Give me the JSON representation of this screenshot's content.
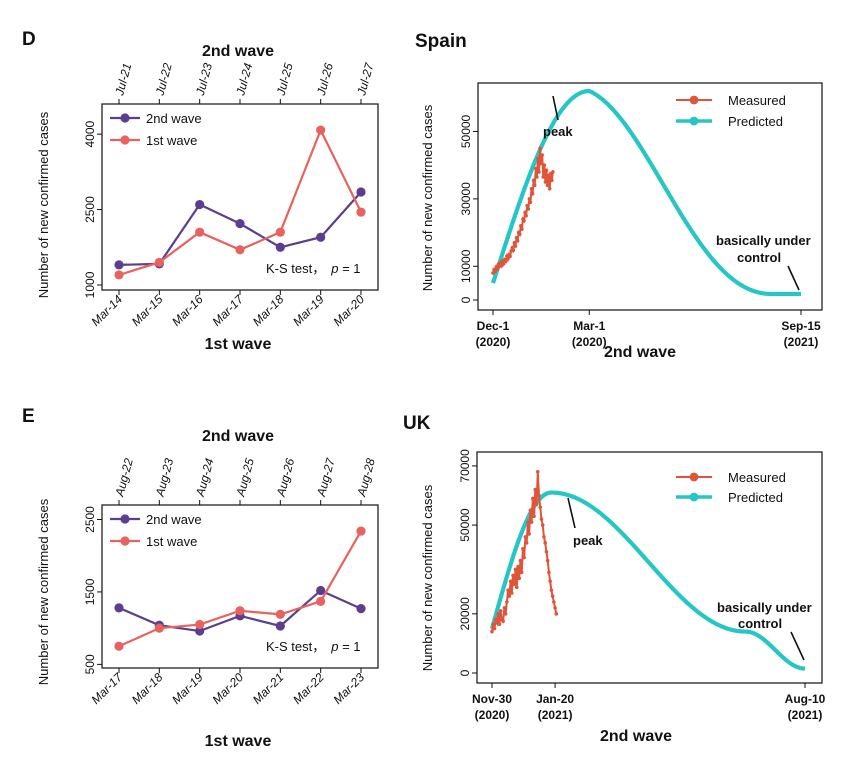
{
  "panels": [
    {
      "id": "D",
      "letter": "D",
      "country": "Spain",
      "comparison": {
        "top_title": "2nd wave",
        "bottom_title": "1st wave",
        "ylabel": "Number of new confirmed cases",
        "top_ticks": [
          "Jul-21",
          "Jul-22",
          "Jul-23",
          "Jul-24",
          "Jul-25",
          "Jul-26",
          "Jul-27"
        ],
        "bottom_ticks": [
          "Mar-14",
          "Mar-15",
          "Mar-16",
          "Mar-17",
          "Mar-18",
          "Mar-19",
          "Mar-20"
        ],
        "yticks": [
          1000,
          2500,
          4000
        ],
        "ylim": [
          900,
          4600
        ],
        "series": [
          {
            "name": "2nd wave",
            "color": "#5b3e8f",
            "values": [
              1400,
              1420,
              2600,
              2220,
              1750,
              1950,
              2850
            ]
          },
          {
            "name": "1st wave",
            "color": "#e8625f",
            "values": [
              1200,
              1450,
              2050,
              1700,
              2050,
              4080,
              2450
            ]
          }
        ],
        "stat_text": "K-S test，",
        "stat_p": "p",
        "stat_val": " = 1"
      },
      "timeseries": {
        "ylabel": "Number of new confirmed cases",
        "xlabel": "2nd wave",
        "yticks": [
          0,
          10000,
          30000,
          50000
        ],
        "ylim": [
          0,
          62000
        ],
        "xlim": [
          0,
          288
        ],
        "xticks": [
          {
            "pos": 0,
            "line1": "Dec-1",
            "line2": "(2020)"
          },
          {
            "pos": 90,
            "line1": "Mar-1",
            "line2": "(2020)"
          },
          {
            "pos": 288,
            "line1": "Sep-15",
            "line2": "(2021)"
          }
        ],
        "measured": {
          "name": "Measured",
          "color": "#e0553a",
          "values": [
            8000,
            9000,
            8500,
            9800,
            9200,
            10500,
            10000,
            11000,
            10200,
            11500,
            10800,
            12000,
            11500,
            13000,
            12200,
            13500,
            13000,
            14500,
            15500,
            14800,
            17000,
            16000,
            18500,
            17500,
            20000,
            19500,
            22000,
            21000,
            24000,
            23500,
            26000,
            25000,
            28000,
            27000,
            30000,
            29000,
            33000,
            31500,
            35500,
            34000,
            39000,
            36500,
            42000,
            38000,
            45000,
            40500,
            43000,
            36500,
            40000,
            35000,
            38500,
            34000,
            37000,
            33000,
            37500,
            35500,
            38000
          ]
        },
        "predicted": {
          "name": "Predicted",
          "color": "#26c6c6",
          "peak_day": 90,
          "peak_value": 62000,
          "start_value": 5000,
          "tail_value": 1800
        },
        "annotation_peak": "peak",
        "annotation_end_1": "basically under",
        "annotation_end_2": "control"
      }
    },
    {
      "id": "E",
      "letter": "E",
      "country": "UK",
      "comparison": {
        "top_title": "2nd wave",
        "bottom_title": "1st wave",
        "ylabel": "Number of new confirmed cases",
        "top_ticks": [
          "Aug-22",
          "Aug-23",
          "Aug-24",
          "Aug-25",
          "Aug-26",
          "Aug-27",
          "Aug-28"
        ],
        "bottom_ticks": [
          "Mar-17",
          "Mar-18",
          "Mar-19",
          "Mar-20",
          "Mar-21",
          "Mar-22",
          "Mar-23"
        ],
        "yticks": [
          500,
          1500,
          2500
        ],
        "ylim": [
          450,
          2700
        ],
        "series": [
          {
            "name": "2nd wave",
            "color": "#5b3e8f",
            "values": [
              1280,
              1040,
              960,
              1170,
              1030,
              1520,
              1270
            ]
          },
          {
            "name": "1st wave",
            "color": "#e8625f",
            "values": [
              750,
              1000,
              1050,
              1240,
              1190,
              1370,
              2340
            ]
          }
        ],
        "stat_text": "K-S test，",
        "stat_p": "p",
        "stat_val": " = 1"
      },
      "timeseries": {
        "ylabel": "Number of new confirmed cases",
        "xlabel": "2nd wave",
        "yticks": [
          0,
          20000,
          50000,
          70000
        ],
        "ylim": [
          0,
          72000
        ],
        "xlim": [
          0,
          253
        ],
        "xticks": [
          {
            "pos": 0,
            "line1": "Nov-30",
            "line2": "(2020)"
          },
          {
            "pos": 51,
            "line1": "Jan-20",
            "line2": "(2021)"
          },
          {
            "pos": 253,
            "line1": "Aug-10",
            "line2": "(2021)"
          }
        ],
        "measured": {
          "name": "Measured",
          "color": "#e0553a",
          "values": [
            14000,
            16500,
            15000,
            18000,
            17000,
            20000,
            16500,
            21000,
            18000,
            17500,
            22000,
            20000,
            24000,
            28000,
            26000,
            31000,
            27000,
            33000,
            30000,
            35000,
            29000,
            36000,
            32000,
            38000,
            34000,
            42000,
            39000,
            46000,
            44000,
            51000,
            47000,
            55000,
            51000,
            59000,
            53000,
            62000,
            57000,
            68000,
            60000,
            56000,
            52000,
            50000,
            46000,
            44000,
            41000,
            38000,
            34000,
            31000,
            28000,
            26000,
            24000,
            22000,
            20000
          ]
        },
        "predicted": {
          "name": "Predicted",
          "color": "#26c6c6",
          "peak_day": 48,
          "peak_value": 61000,
          "start_value": 15000,
          "shoulder_value": 14000,
          "end_value": 1500
        },
        "annotation_peak": "peak",
        "annotation_end_1": "basically under",
        "annotation_end_2": "control"
      }
    }
  ],
  "legend_labels": {
    "measured": "Measured",
    "predicted": "Predicted",
    "second": "2nd wave",
    "first": "1st wave"
  }
}
